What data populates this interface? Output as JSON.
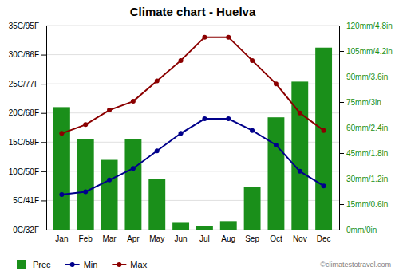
{
  "chart_data": {
    "type": "bar",
    "title": "Climate chart - Huelva",
    "categories": [
      "Jan",
      "Feb",
      "Mar",
      "Apr",
      "May",
      "Jun",
      "Jul",
      "Aug",
      "Sep",
      "Oct",
      "Nov",
      "Dec"
    ],
    "series": [
      {
        "name": "Prec",
        "type": "bar",
        "axis": "y2",
        "color": "#1a8f1a",
        "values": [
          72,
          53,
          41,
          53,
          30,
          4,
          2,
          5,
          25,
          66,
          87,
          107
        ]
      },
      {
        "name": "Min",
        "type": "line",
        "color": "#00008b",
        "marker": "circle",
        "values": [
          6,
          6.5,
          8.5,
          10.5,
          13.5,
          16.5,
          19,
          19,
          17,
          14.5,
          10,
          7.5
        ]
      },
      {
        "name": "Max",
        "type": "line",
        "color": "#8b0000",
        "marker": "circle",
        "values": [
          16.5,
          18,
          20.5,
          22,
          25.5,
          29,
          33,
          33,
          29,
          25,
          20,
          17
        ]
      }
    ],
    "ylim": [
      0,
      35
    ],
    "yticks": [
      {
        "value": 0,
        "label": "0C/32F"
      },
      {
        "value": 5,
        "label": "5C/41F"
      },
      {
        "value": 10,
        "label": "10C/50F"
      },
      {
        "value": 15,
        "label": "15C/59F"
      },
      {
        "value": 20,
        "label": "20C/68F"
      },
      {
        "value": 25,
        "label": "25C/77F"
      },
      {
        "value": 30,
        "label": "30C/86F"
      },
      {
        "value": 35,
        "label": "35C/95F"
      }
    ],
    "y2lim": [
      0,
      120
    ],
    "y2ticks": [
      {
        "value": 0,
        "label": "0mm/0in"
      },
      {
        "value": 15,
        "label": "15mm/0.6in"
      },
      {
        "value": 30,
        "label": "30mm/1.2in"
      },
      {
        "value": 45,
        "label": "45mm/1.8in"
      },
      {
        "value": 60,
        "label": "60mm/2.4in"
      },
      {
        "value": 75,
        "label": "75mm/3in"
      },
      {
        "value": 90,
        "label": "90mm/3.6in"
      },
      {
        "value": 105,
        "label": "105mm/4.2in"
      },
      {
        "value": 120,
        "label": "120mm/4.8in"
      }
    ],
    "grid": true,
    "legend": "bottom",
    "annotations": [
      "©climatestotravel.com"
    ]
  }
}
